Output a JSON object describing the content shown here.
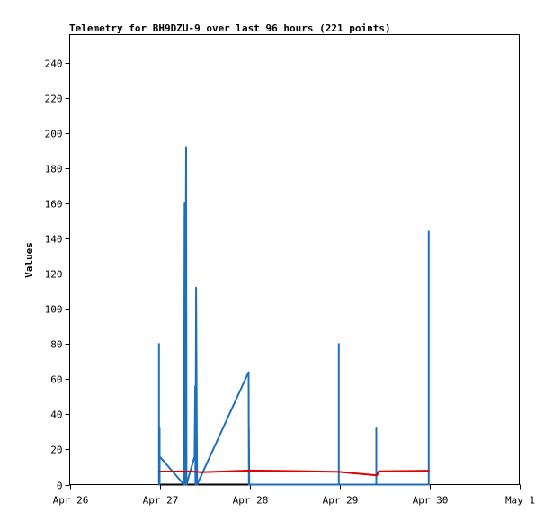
{
  "chart_data": {
    "type": "line",
    "title": "Telemetry for BH9DZU-9 over last 96 hours (221 points)",
    "ylabel": "Values",
    "xlabel": "",
    "ylim": [
      0,
      256
    ],
    "yticks": [
      0,
      20,
      40,
      60,
      80,
      100,
      120,
      140,
      160,
      180,
      200,
      220,
      240
    ],
    "xlim": [
      "2026-04-26T00:00",
      "2026-05-01T00:00"
    ],
    "xticks": [
      {
        "t": "2026-04-26T00:00",
        "label": "Apr 26"
      },
      {
        "t": "2026-04-27T00:00",
        "label": "Apr 27"
      },
      {
        "t": "2026-04-28T00:00",
        "label": "Apr 28"
      },
      {
        "t": "2026-04-29T00:00",
        "label": "Apr 29"
      },
      {
        "t": "2026-04-30T00:00",
        "label": "Apr 30"
      },
      {
        "t": "2026-05-01T00:00",
        "label": "May 1"
      }
    ],
    "series": [
      {
        "color": "#000000",
        "points": [
          [
            "2026-04-26T23:50",
            0
          ],
          [
            "2026-04-28T12:00",
            0
          ],
          [
            "2026-04-30T00:00",
            0
          ]
        ]
      },
      {
        "color": "#1f6fbf",
        "points": [
          [
            "2026-04-26T23:50",
            0
          ],
          [
            "2026-04-26T23:50",
            80
          ],
          [
            "2026-04-26T23:50",
            0
          ],
          [
            "2026-04-27T00:00",
            0
          ],
          [
            "2026-04-27T00:00",
            32
          ],
          [
            "2026-04-27T00:00",
            16
          ],
          [
            "2026-04-27T06:30",
            0
          ],
          [
            "2026-04-27T06:40",
            160
          ],
          [
            "2026-04-27T06:45",
            0
          ],
          [
            "2026-04-27T07:05",
            192
          ],
          [
            "2026-04-27T07:10",
            0
          ],
          [
            "2026-04-27T09:20",
            16
          ],
          [
            "2026-04-27T09:30",
            56
          ],
          [
            "2026-04-27T09:35",
            0
          ],
          [
            "2026-04-27T09:45",
            112
          ],
          [
            "2026-04-27T10:00",
            0
          ],
          [
            "2026-04-27T23:45",
            64
          ],
          [
            "2026-04-27T23:50",
            0
          ],
          [
            "2026-04-27T23:50",
            32
          ],
          [
            "2026-04-27T23:55",
            0
          ],
          [
            "2026-04-28T23:50",
            0
          ],
          [
            "2026-04-28T23:50",
            80
          ],
          [
            "2026-04-28T23:50",
            0
          ],
          [
            "2026-04-29T09:50",
            0
          ],
          [
            "2026-04-29T09:50",
            32
          ],
          [
            "2026-04-29T09:50",
            0
          ],
          [
            "2026-04-29T23:50",
            0
          ],
          [
            "2026-04-29T23:50",
            144
          ],
          [
            "2026-04-29T23:50",
            0
          ]
        ]
      },
      {
        "color": "#e00000",
        "points": [
          [
            "2026-04-26T23:50",
            7.4
          ],
          [
            "2026-04-27T08:00",
            7.5
          ],
          [
            "2026-04-27T10:00",
            7.2
          ],
          [
            "2026-04-27T11:00",
            7.0
          ],
          [
            "2026-04-28T00:00",
            8.0
          ],
          [
            "2026-04-28T12:00",
            7.7
          ],
          [
            "2026-04-29T00:00",
            7.2
          ],
          [
            "2026-04-29T10:00",
            5.2
          ],
          [
            "2026-04-29T10:30",
            7.6
          ],
          [
            "2026-04-30T00:00",
            7.9
          ]
        ]
      }
    ],
    "grid": false,
    "legend": "none"
  }
}
